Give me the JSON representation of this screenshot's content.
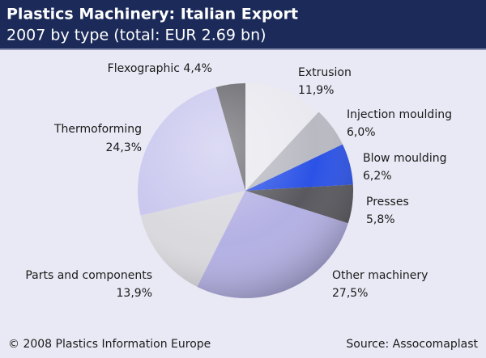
{
  "chart_data": {
    "type": "pie",
    "title": "Plastics Machinery: Italian Export",
    "subtitle": "2007 by type (total: EUR 2.69 bn)",
    "categories": [
      "Extrusion",
      "Injection moulding",
      "Blow moulding",
      "Presses",
      "Other machinery",
      "Parts and components",
      "Thermoforming",
      "Flexographic"
    ],
    "values": [
      11.9,
      6.0,
      6.2,
      5.8,
      27.5,
      13.9,
      24.3,
      4.4
    ],
    "value_labels": [
      "11,9%",
      "6,0%",
      "6,2%",
      "5,8%",
      "27,5%",
      "13,9%",
      "24,3%",
      "4,4%"
    ],
    "colors": [
      "#e9e9ef",
      "#b9b9c2",
      "#2b52e6",
      "#58585e",
      "#b3b0e4",
      "#d9d9de",
      "#cac8ee",
      "#6a6a70"
    ],
    "credit": "© 2008 Plastics Information Europe",
    "source": "Source: Assocomaplast"
  }
}
